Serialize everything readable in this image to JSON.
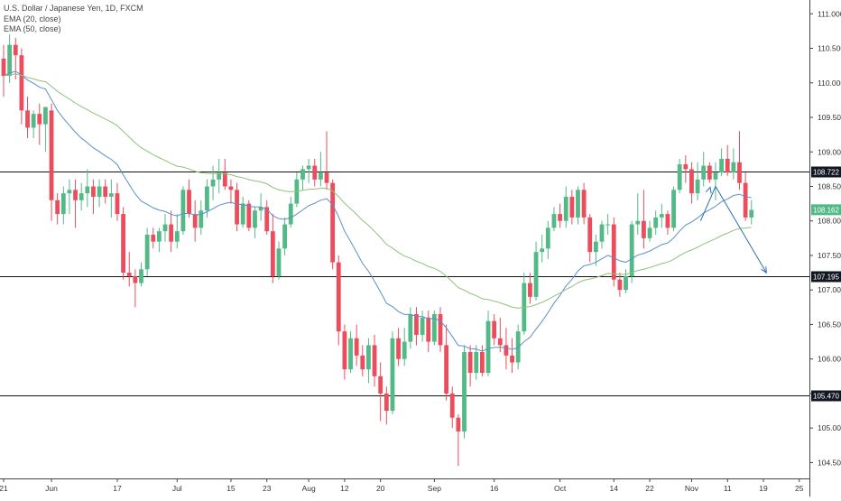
{
  "chart_data": {
    "type": "candlestick",
    "title": "U.S. Dollar / Japanese Yen, 1D, FXCM",
    "indicators": [
      {
        "name": "EMA (20, close)",
        "color": "#5b8fc9"
      },
      {
        "name": "EMA (50, close)",
        "color": "#8fc27a"
      }
    ],
    "ylim": [
      104.27,
      111.2
    ],
    "y_ticks": [
      "111.000",
      "110.500",
      "110.000",
      "109.500",
      "109.000",
      "108.500",
      "108.000",
      "107.500",
      "107.000",
      "106.500",
      "106.000",
      "105.500",
      "105.000",
      "104.500"
    ],
    "y_tick_values": [
      111.0,
      110.5,
      110.0,
      109.5,
      109.0,
      108.5,
      108.0,
      107.5,
      107.0,
      106.5,
      106.0,
      105.5,
      105.0,
      104.5
    ],
    "x_ticks": [
      {
        "label": "21",
        "i": 0
      },
      {
        "label": "Jun",
        "i": 8
      },
      {
        "label": "17",
        "i": 19
      },
      {
        "label": "Jul",
        "i": 29
      },
      {
        "label": "15",
        "i": 38
      },
      {
        "label": "23",
        "i": 44
      },
      {
        "label": "Aug",
        "i": 51
      },
      {
        "label": "12",
        "i": 57
      },
      {
        "label": "20",
        "i": 63
      },
      {
        "label": "Sep",
        "i": 72
      },
      {
        "label": "16",
        "i": 82
      },
      {
        "label": "Oct",
        "i": 93
      },
      {
        "label": "14",
        "i": 102
      },
      {
        "label": "22",
        "i": 108
      },
      {
        "label": "Nov",
        "i": 115
      },
      {
        "label": "11",
        "i": 121
      },
      {
        "label": "19",
        "i": 127
      },
      {
        "label": "25",
        "i": 133
      }
    ],
    "horizontal_levels": [
      {
        "value": 108.722,
        "label": "108.722"
      },
      {
        "value": 107.195,
        "label": "107.195"
      },
      {
        "value": 105.47,
        "label": "105.470"
      }
    ],
    "last_price": {
      "value": 108.162,
      "label": "108.162"
    },
    "up_color": "#53b987",
    "down_color": "#eb4d5c",
    "projection": [
      [
        116.5,
        108.0
      ],
      [
        119,
        108.5
      ],
      [
        127.5,
        107.25
      ]
    ],
    "candles": [
      [
        110.35,
        110.55,
        109.8,
        110.1
      ],
      [
        110.1,
        110.7,
        110.0,
        110.55
      ],
      [
        110.55,
        110.65,
        110.05,
        110.4
      ],
      [
        110.4,
        110.5,
        109.4,
        109.6
      ],
      [
        109.6,
        109.8,
        109.2,
        109.35
      ],
      [
        109.35,
        109.6,
        109.2,
        109.55
      ],
      [
        109.55,
        109.7,
        109.1,
        109.4
      ],
      [
        109.4,
        109.6,
        109.0,
        109.65
      ],
      [
        109.6,
        109.7,
        108.0,
        108.3
      ],
      [
        108.3,
        108.4,
        107.95,
        108.1
      ],
      [
        108.1,
        108.5,
        107.95,
        108.4
      ],
      [
        108.4,
        108.6,
        108.1,
        108.45
      ],
      [
        108.45,
        108.6,
        107.9,
        108.3
      ],
      [
        108.3,
        108.55,
        108.15,
        108.4
      ],
      [
        108.4,
        108.75,
        108.2,
        108.5
      ],
      [
        108.5,
        108.6,
        108.1,
        108.35
      ],
      [
        108.35,
        108.6,
        108.2,
        108.5
      ],
      [
        108.5,
        108.6,
        108.25,
        108.35
      ],
      [
        108.35,
        108.6,
        108.05,
        108.4
      ],
      [
        108.4,
        108.55,
        108.0,
        108.1
      ],
      [
        108.1,
        108.2,
        107.15,
        107.25
      ],
      [
        107.25,
        107.55,
        107.05,
        107.2
      ],
      [
        107.2,
        107.3,
        106.75,
        107.1
      ],
      [
        107.1,
        107.4,
        107.05,
        107.3
      ],
      [
        107.3,
        107.9,
        107.2,
        107.8
      ],
      [
        107.8,
        107.9,
        107.6,
        107.7
      ],
      [
        107.7,
        107.9,
        107.55,
        107.85
      ],
      [
        107.85,
        108.1,
        107.7,
        107.95
      ],
      [
        107.95,
        108.15,
        107.55,
        107.7
      ],
      [
        107.7,
        108.1,
        107.6,
        107.85
      ],
      [
        107.85,
        108.5,
        107.8,
        108.45
      ],
      [
        108.45,
        108.6,
        108.05,
        108.1
      ],
      [
        108.1,
        108.3,
        107.7,
        107.9
      ],
      [
        107.9,
        108.3,
        107.8,
        108.15
      ],
      [
        108.15,
        108.6,
        108.05,
        108.5
      ],
      [
        108.5,
        108.8,
        108.3,
        108.6
      ],
      [
        108.6,
        108.9,
        108.4,
        108.7
      ],
      [
        108.7,
        108.9,
        108.45,
        108.5
      ],
      [
        108.5,
        108.6,
        108.25,
        108.45
      ],
      [
        108.45,
        108.55,
        107.85,
        107.95
      ],
      [
        107.95,
        108.35,
        107.9,
        108.25
      ],
      [
        108.25,
        108.3,
        107.85,
        107.9
      ],
      [
        107.9,
        108.2,
        107.75,
        108.15
      ],
      [
        108.15,
        108.4,
        108.0,
        108.2
      ],
      [
        108.2,
        108.3,
        107.8,
        107.85
      ],
      [
        107.85,
        108.1,
        107.1,
        107.2
      ],
      [
        107.2,
        107.7,
        107.15,
        107.6
      ],
      [
        107.6,
        108.05,
        107.5,
        107.95
      ],
      [
        107.95,
        108.35,
        107.9,
        108.25
      ],
      [
        108.25,
        108.7,
        108.2,
        108.6
      ],
      [
        108.6,
        108.8,
        108.45,
        108.75
      ],
      [
        108.75,
        108.9,
        108.55,
        108.8
      ],
      [
        108.8,
        108.9,
        108.5,
        108.6
      ],
      [
        108.6,
        109.0,
        108.5,
        108.7
      ],
      [
        108.7,
        109.3,
        108.45,
        108.55
      ],
      [
        108.55,
        108.6,
        107.3,
        107.4
      ],
      [
        107.4,
        107.5,
        106.2,
        106.4
      ],
      [
        106.4,
        106.5,
        105.7,
        105.85
      ],
      [
        105.85,
        106.4,
        105.8,
        106.3
      ],
      [
        106.3,
        106.5,
        105.9,
        106.05
      ],
      [
        106.05,
        106.2,
        105.75,
        105.85
      ],
      [
        105.85,
        106.3,
        105.65,
        106.2
      ],
      [
        106.2,
        106.35,
        105.6,
        105.75
      ],
      [
        105.75,
        105.95,
        105.1,
        105.5
      ],
      [
        105.5,
        105.6,
        105.05,
        105.25
      ],
      [
        105.25,
        106.4,
        105.2,
        106.3
      ],
      [
        106.3,
        106.45,
        105.9,
        106.0
      ],
      [
        106.0,
        106.45,
        105.9,
        106.25
      ],
      [
        106.25,
        106.75,
        106.15,
        106.65
      ],
      [
        106.65,
        106.75,
        106.2,
        106.35
      ],
      [
        106.35,
        106.7,
        106.25,
        106.6
      ],
      [
        106.6,
        106.7,
        106.1,
        106.25
      ],
      [
        106.25,
        106.7,
        106.2,
        106.65
      ],
      [
        106.65,
        106.75,
        106.1,
        106.2
      ],
      [
        106.2,
        106.5,
        105.4,
        105.5
      ],
      [
        105.5,
        105.6,
        105.0,
        105.15
      ],
      [
        105.15,
        105.2,
        104.45,
        104.95
      ],
      [
        104.95,
        106.2,
        104.85,
        106.1
      ],
      [
        106.1,
        106.2,
        105.6,
        105.8
      ],
      [
        105.8,
        106.2,
        105.7,
        106.1
      ],
      [
        106.1,
        106.2,
        105.75,
        105.8
      ],
      [
        105.8,
        106.7,
        105.75,
        106.55
      ],
      [
        106.55,
        106.65,
        106.2,
        106.3
      ],
      [
        106.3,
        106.6,
        106.1,
        106.2
      ],
      [
        106.2,
        106.45,
        105.85,
        106.05
      ],
      [
        106.05,
        106.3,
        105.8,
        105.95
      ],
      [
        105.95,
        106.5,
        105.85,
        106.4
      ],
      [
        106.4,
        107.25,
        106.35,
        107.1
      ],
      [
        107.1,
        107.25,
        106.8,
        106.9
      ],
      [
        106.9,
        107.7,
        106.85,
        107.55
      ],
      [
        107.55,
        107.8,
        107.4,
        107.6
      ],
      [
        107.6,
        108.0,
        107.45,
        107.9
      ],
      [
        107.9,
        108.2,
        107.85,
        108.1
      ],
      [
        108.1,
        108.25,
        107.9,
        108.0
      ],
      [
        108.0,
        108.5,
        107.9,
        108.35
      ],
      [
        108.35,
        108.45,
        107.95,
        108.05
      ],
      [
        108.05,
        108.5,
        107.95,
        108.45
      ],
      [
        108.45,
        108.55,
        107.95,
        108.05
      ],
      [
        108.05,
        108.1,
        107.4,
        107.55
      ],
      [
        107.55,
        107.8,
        107.35,
        107.7
      ],
      [
        107.7,
        108.0,
        107.6,
        107.95
      ],
      [
        107.95,
        108.1,
        107.8,
        107.95
      ],
      [
        107.95,
        108.05,
        107.05,
        107.15
      ],
      [
        107.15,
        107.25,
        106.9,
        107.0
      ],
      [
        107.0,
        107.3,
        106.95,
        107.2
      ],
      [
        107.2,
        108.0,
        107.1,
        107.95
      ],
      [
        107.95,
        108.4,
        107.8,
        108.0
      ],
      [
        108.0,
        108.45,
        107.6,
        107.75
      ],
      [
        107.75,
        108.0,
        107.7,
        107.9
      ],
      [
        107.9,
        108.15,
        107.8,
        108.05
      ],
      [
        108.05,
        108.25,
        107.9,
        108.1
      ],
      [
        108.1,
        108.15,
        107.8,
        107.9
      ],
      [
        107.9,
        108.5,
        107.85,
        108.45
      ],
      [
        108.45,
        108.9,
        108.4,
        108.82
      ],
      [
        108.82,
        108.95,
        108.55,
        108.75
      ],
      [
        108.75,
        108.85,
        108.25,
        108.4
      ],
      [
        108.4,
        108.85,
        108.3,
        108.6
      ],
      [
        108.6,
        109.0,
        108.5,
        108.8
      ],
      [
        108.8,
        108.85,
        108.55,
        108.6
      ],
      [
        108.6,
        108.85,
        108.3,
        108.7
      ],
      [
        108.7,
        109.05,
        108.65,
        108.9
      ],
      [
        108.9,
        109.1,
        108.65,
        108.7
      ],
      [
        108.7,
        109.05,
        108.6,
        108.85
      ],
      [
        108.85,
        109.3,
        108.45,
        108.55
      ],
      [
        108.55,
        108.7,
        108.0,
        108.05
      ],
      [
        108.05,
        108.3,
        107.95,
        108.16
      ]
    ]
  }
}
